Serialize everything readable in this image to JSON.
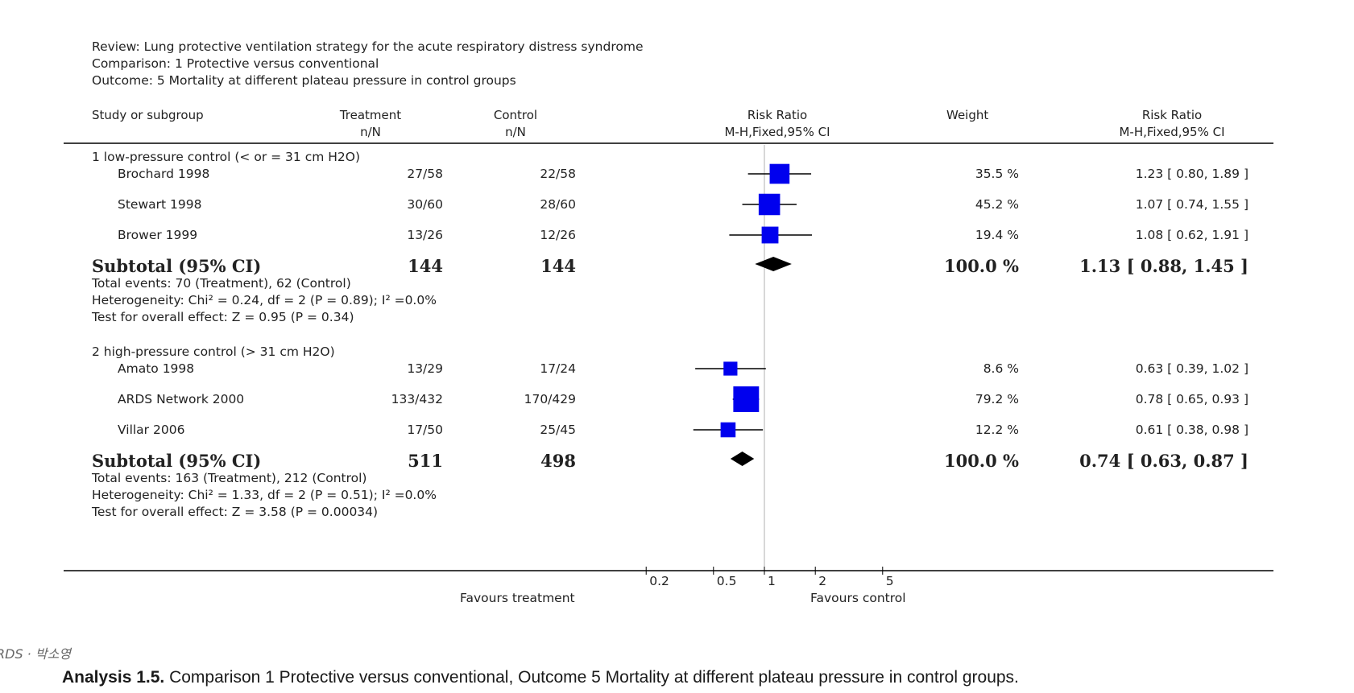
{
  "header": {
    "review": "Review:  Lung protective ventilation strategy for the acute respiratory distress syndrome",
    "comparison": "Comparison:  1 Protective versus conventional",
    "outcome": "Outcome:  5 Mortality at different plateau pressure in control groups"
  },
  "columns": {
    "study": "Study or subgroup",
    "treatment": "Treatment",
    "treatment_sub": "n/N",
    "control": "Control",
    "control_sub": "n/N",
    "rr": "Risk Ratio",
    "rr_sub": "M-H,Fixed,95% CI",
    "weight": "Weight",
    "rr2": "Risk Ratio",
    "rr2_sub": "M-H,Fixed,95% CI"
  },
  "chart_data": {
    "type": "forest",
    "xscale": "log",
    "xlim": [
      0.2,
      5
    ],
    "ticks": [
      "0.2",
      "0.5",
      "1",
      "2",
      "5"
    ],
    "left_label": "Favours treatment",
    "right_label": "Favours control",
    "groups": [
      {
        "title": "1 low-pressure control (< or = 31 cm H2O)",
        "studies": [
          {
            "name": "Brochard 1998",
            "treatment": "27/58",
            "control": "22/58",
            "weight": "35.5 %",
            "ci": "1.23 [ 0.80, 1.89 ]",
            "rr": 1.23,
            "lo": 0.8,
            "hi": 1.89,
            "w": 35.5
          },
          {
            "name": "Stewart 1998",
            "treatment": "30/60",
            "control": "28/60",
            "weight": "45.2 %",
            "ci": "1.07 [ 0.74, 1.55 ]",
            "rr": 1.07,
            "lo": 0.74,
            "hi": 1.55,
            "w": 45.2
          },
          {
            "name": "Brower 1999",
            "treatment": "13/26",
            "control": "12/26",
            "weight": "19.4 %",
            "ci": "1.08 [ 0.62, 1.91 ]",
            "rr": 1.08,
            "lo": 0.62,
            "hi": 1.91,
            "w": 19.4
          }
        ],
        "subtotal": {
          "label": "Subtotal (95% CI)",
          "treatment": "144",
          "control": "144",
          "weight": "100.0 %",
          "ci": "1.13 [ 0.88, 1.45 ]",
          "rr": 1.13,
          "lo": 0.88,
          "hi": 1.45
        },
        "events": "Total events: 70 (Treatment), 62 (Control)",
        "heterogeneity": "Heterogeneity: Chi² = 0.24, df = 2 (P = 0.89); I² =0.0%",
        "overall": "Test for overall effect: Z = 0.95 (P = 0.34)"
      },
      {
        "title": "2 high-pressure control (> 31 cm H2O)",
        "studies": [
          {
            "name": "Amato 1998",
            "treatment": "13/29",
            "control": "17/24",
            "weight": "8.6 %",
            "ci": "0.63 [ 0.39, 1.02 ]",
            "rr": 0.63,
            "lo": 0.39,
            "hi": 1.02,
            "w": 8.6
          },
          {
            "name": "ARDS Network 2000",
            "treatment": "133/432",
            "control": "170/429",
            "weight": "79.2 %",
            "ci": "0.78 [ 0.65, 0.93 ]",
            "rr": 0.78,
            "lo": 0.65,
            "hi": 0.93,
            "w": 79.2
          },
          {
            "name": "Villar 2006",
            "treatment": "17/50",
            "control": "25/45",
            "weight": "12.2 %",
            "ci": "0.61 [ 0.38, 0.98 ]",
            "rr": 0.61,
            "lo": 0.38,
            "hi": 0.98,
            "w": 12.2
          }
        ],
        "subtotal": {
          "label": "Subtotal (95% CI)",
          "treatment": "511",
          "control": "498",
          "weight": "100.0 %",
          "ci": "0.74 [ 0.63, 0.87 ]",
          "rr": 0.74,
          "lo": 0.63,
          "hi": 0.87
        },
        "events": "Total events: 163 (Treatment), 212 (Control)",
        "heterogeneity": "Heterogeneity: Chi² = 1.33, df = 2 (P = 0.51); I² =0.0%",
        "overall": "Test for overall effect: Z = 3.58 (P = 0.00034)"
      }
    ]
  },
  "colors": {
    "box": "#0000ee",
    "diamond": "#000000",
    "line": "#000000",
    "refline": "#b0b0b0"
  },
  "tag": "RDS · 박소영",
  "caption_bold": "Analysis 1.5.",
  "caption_text": " Comparison 1 Protective versus conventional, Outcome 5 Mortality at different plateau pressure in control groups."
}
